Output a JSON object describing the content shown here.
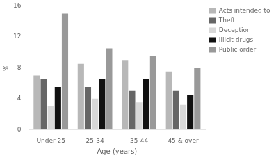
{
  "chart_data": {
    "type": "bar",
    "categories": [
      "Under 25",
      "25-34",
      "35-44",
      "45 & over"
    ],
    "series": [
      {
        "name": "Acts intended to cause injury",
        "values": [
          7.0,
          8.5,
          9.0,
          7.5
        ],
        "color": "#b8b8b8"
      },
      {
        "name": "Theft",
        "values": [
          6.5,
          5.5,
          5.0,
          5.0
        ],
        "color": "#666666"
      },
      {
        "name": "Deception",
        "values": [
          3.0,
          4.0,
          3.5,
          3.2
        ],
        "color": "#d8d8d8"
      },
      {
        "name": "Illicit drugs",
        "values": [
          5.5,
          6.5,
          6.5,
          4.5
        ],
        "color": "#111111"
      },
      {
        "name": "Public order",
        "values": [
          15.0,
          10.5,
          9.5,
          8.0
        ],
        "color": "#999999"
      }
    ],
    "ylabel": "%",
    "xlabel": "Age (years)",
    "ylim": [
      0,
      16
    ],
    "yticks": [
      0,
      4,
      8,
      12,
      16
    ],
    "grid": false,
    "legend": "right"
  }
}
